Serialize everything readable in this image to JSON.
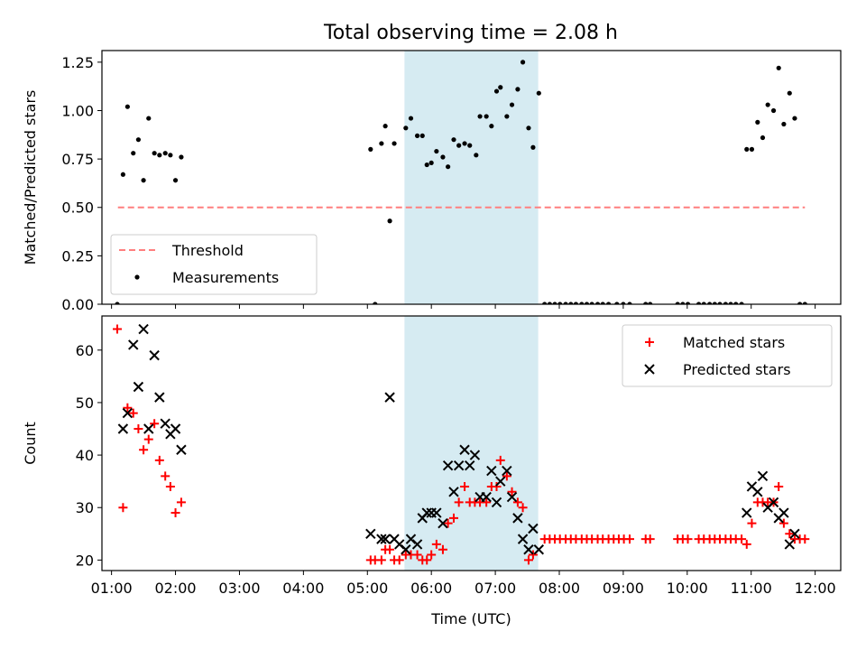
{
  "figure": {
    "title": "Total observing time = 2.08 h"
  },
  "colors": {
    "measurements": "#000000",
    "threshold": "#ff7f7f",
    "span": "#add8e6",
    "matched": "#ff0000",
    "predicted": "#000000"
  },
  "chart_data": [
    {
      "type": "scatter",
      "ylabel": "Matched/Predicted stars",
      "xlim": [
        0.85,
        12.4
      ],
      "ylim": [
        0.0,
        1.31
      ],
      "yticks": [
        0.0,
        0.25,
        0.5,
        0.75,
        1.0,
        1.25
      ],
      "ytick_labels": [
        "0.00",
        "0.25",
        "0.50",
        "0.75",
        "1.00",
        "1.25"
      ],
      "highlight_span": [
        5.58,
        7.67
      ],
      "threshold": {
        "name": "Threshold",
        "value": 0.5,
        "x_range": [
          1.1,
          11.84
        ],
        "style": "dashed"
      },
      "legend": {
        "position": "lower-left",
        "entries": [
          "Threshold",
          "Measurements"
        ]
      },
      "series": [
        {
          "name": "Measurements",
          "marker": "dot",
          "points": [
            [
              1.09,
              0.0
            ],
            [
              1.18,
              0.67
            ],
            [
              1.25,
              1.02
            ],
            [
              1.34,
              0.78
            ],
            [
              1.42,
              0.85
            ],
            [
              1.5,
              0.64
            ],
            [
              1.58,
              0.96
            ],
            [
              1.67,
              0.78
            ],
            [
              1.75,
              0.77
            ],
            [
              1.84,
              0.78
            ],
            [
              1.92,
              0.77
            ],
            [
              2.0,
              0.64
            ],
            [
              2.09,
              0.76
            ],
            [
              5.05,
              0.8
            ],
            [
              5.12,
              0.0
            ],
            [
              5.22,
              0.83
            ],
            [
              5.28,
              0.92
            ],
            [
              5.35,
              0.43
            ],
            [
              5.42,
              0.83
            ],
            [
              5.6,
              0.91
            ],
            [
              5.68,
              0.96
            ],
            [
              5.78,
              0.87
            ],
            [
              5.86,
              0.87
            ],
            [
              5.93,
              0.72
            ],
            [
              6.0,
              0.73
            ],
            [
              6.08,
              0.79
            ],
            [
              6.18,
              0.76
            ],
            [
              6.26,
              0.71
            ],
            [
              6.35,
              0.85
            ],
            [
              6.43,
              0.82
            ],
            [
              6.52,
              0.83
            ],
            [
              6.6,
              0.82
            ],
            [
              6.7,
              0.77
            ],
            [
              6.76,
              0.97
            ],
            [
              6.86,
              0.97
            ],
            [
              6.94,
              0.92
            ],
            [
              7.02,
              1.1
            ],
            [
              7.08,
              1.12
            ],
            [
              7.18,
              0.97
            ],
            [
              7.26,
              1.03
            ],
            [
              7.35,
              1.11
            ],
            [
              7.43,
              1.25
            ],
            [
              7.52,
              0.91
            ],
            [
              7.59,
              0.81
            ],
            [
              7.68,
              1.09
            ],
            [
              7.77,
              0.0
            ],
            [
              7.85,
              0.0
            ],
            [
              7.93,
              0.0
            ],
            [
              8.01,
              0.0
            ],
            [
              8.1,
              0.0
            ],
            [
              8.18,
              0.0
            ],
            [
              8.26,
              0.0
            ],
            [
              8.35,
              0.0
            ],
            [
              8.43,
              0.0
            ],
            [
              8.51,
              0.0
            ],
            [
              8.6,
              0.0
            ],
            [
              8.68,
              0.0
            ],
            [
              8.77,
              0.0
            ],
            [
              8.9,
              0.0
            ],
            [
              9.0,
              0.0
            ],
            [
              9.1,
              0.0
            ],
            [
              9.35,
              0.0
            ],
            [
              9.42,
              0.0
            ],
            [
              9.85,
              0.0
            ],
            [
              9.93,
              0.0
            ],
            [
              10.01,
              0.0
            ],
            [
              10.18,
              0.0
            ],
            [
              10.26,
              0.0
            ],
            [
              10.35,
              0.0
            ],
            [
              10.43,
              0.0
            ],
            [
              10.51,
              0.0
            ],
            [
              10.6,
              0.0
            ],
            [
              10.68,
              0.0
            ],
            [
              10.76,
              0.0
            ],
            [
              10.85,
              0.0
            ],
            [
              10.93,
              0.8
            ],
            [
              11.01,
              0.8
            ],
            [
              11.1,
              0.94
            ],
            [
              11.18,
              0.86
            ],
            [
              11.26,
              1.03
            ],
            [
              11.35,
              1.0
            ],
            [
              11.43,
              1.22
            ],
            [
              11.51,
              0.93
            ],
            [
              11.6,
              1.09
            ],
            [
              11.68,
              0.96
            ],
            [
              11.76,
              0.0
            ],
            [
              11.84,
              0.0
            ]
          ]
        }
      ]
    },
    {
      "type": "scatter",
      "xlabel": "Time (UTC)",
      "ylabel": "Count",
      "xlim": [
        0.85,
        12.4
      ],
      "ylim": [
        18,
        66.5
      ],
      "yticks": [
        20,
        30,
        40,
        50,
        60
      ],
      "ytick_labels": [
        "20",
        "30",
        "40",
        "50",
        "60"
      ],
      "xticks": [
        1,
        2,
        3,
        4,
        5,
        6,
        7,
        8,
        9,
        10,
        11,
        12
      ],
      "xtick_labels": [
        "01:00",
        "02:00",
        "03:00",
        "04:00",
        "05:00",
        "06:00",
        "07:00",
        "08:00",
        "09:00",
        "10:00",
        "11:00",
        "12:00"
      ],
      "highlight_span": [
        5.58,
        7.67
      ],
      "legend": {
        "position": "upper-right",
        "entries": [
          "Matched stars",
          "Predicted stars"
        ]
      },
      "series": [
        {
          "name": "Matched stars",
          "marker": "plus",
          "points": [
            [
              1.09,
              64
            ],
            [
              1.18,
              30
            ],
            [
              1.25,
              49
            ],
            [
              1.34,
              48
            ],
            [
              1.42,
              45
            ],
            [
              1.5,
              41
            ],
            [
              1.58,
              43
            ],
            [
              1.67,
              46
            ],
            [
              1.75,
              39
            ],
            [
              1.84,
              36
            ],
            [
              1.92,
              34
            ],
            [
              2.0,
              29
            ],
            [
              2.09,
              31
            ],
            [
              5.05,
              20
            ],
            [
              5.12,
              20
            ],
            [
              5.22,
              20
            ],
            [
              5.28,
              22
            ],
            [
              5.35,
              22
            ],
            [
              5.42,
              20
            ],
            [
              5.5,
              20
            ],
            [
              5.6,
              21
            ],
            [
              5.68,
              21
            ],
            [
              5.78,
              21
            ],
            [
              5.86,
              20
            ],
            [
              5.93,
              20
            ],
            [
              6.0,
              21
            ],
            [
              6.08,
              23
            ],
            [
              6.18,
              22
            ],
            [
              6.26,
              27
            ],
            [
              6.35,
              28
            ],
            [
              6.43,
              31
            ],
            [
              6.52,
              34
            ],
            [
              6.6,
              31
            ],
            [
              6.68,
              31
            ],
            [
              6.76,
              31
            ],
            [
              6.86,
              31
            ],
            [
              6.94,
              34
            ],
            [
              7.02,
              34
            ],
            [
              7.08,
              39
            ],
            [
              7.18,
              36
            ],
            [
              7.26,
              33
            ],
            [
              7.35,
              31
            ],
            [
              7.43,
              30
            ],
            [
              7.52,
              20
            ],
            [
              7.59,
              21
            ],
            [
              7.77,
              24
            ],
            [
              7.85,
              24
            ],
            [
              7.93,
              24
            ],
            [
              8.01,
              24
            ],
            [
              8.1,
              24
            ],
            [
              8.18,
              24
            ],
            [
              8.26,
              24
            ],
            [
              8.35,
              24
            ],
            [
              8.43,
              24
            ],
            [
              8.51,
              24
            ],
            [
              8.6,
              24
            ],
            [
              8.68,
              24
            ],
            [
              8.77,
              24
            ],
            [
              8.85,
              24
            ],
            [
              8.93,
              24
            ],
            [
              9.01,
              24
            ],
            [
              9.1,
              24
            ],
            [
              9.35,
              24
            ],
            [
              9.42,
              24
            ],
            [
              9.85,
              24
            ],
            [
              9.93,
              24
            ],
            [
              10.01,
              24
            ],
            [
              10.18,
              24
            ],
            [
              10.26,
              24
            ],
            [
              10.35,
              24
            ],
            [
              10.43,
              24
            ],
            [
              10.51,
              24
            ],
            [
              10.6,
              24
            ],
            [
              10.68,
              24
            ],
            [
              10.76,
              24
            ],
            [
              10.85,
              24
            ],
            [
              10.93,
              23
            ],
            [
              11.01,
              27
            ],
            [
              11.1,
              31
            ],
            [
              11.18,
              31
            ],
            [
              11.26,
              31
            ],
            [
              11.35,
              31
            ],
            [
              11.43,
              34
            ],
            [
              11.51,
              27
            ],
            [
              11.6,
              25
            ],
            [
              11.68,
              24
            ],
            [
              11.76,
              24
            ],
            [
              11.84,
              24
            ]
          ]
        },
        {
          "name": "Predicted stars",
          "marker": "x",
          "points": [
            [
              1.18,
              45
            ],
            [
              1.25,
              48
            ],
            [
              1.34,
              61
            ],
            [
              1.42,
              53
            ],
            [
              1.5,
              64
            ],
            [
              1.58,
              45
            ],
            [
              1.67,
              59
            ],
            [
              1.75,
              51
            ],
            [
              1.84,
              46
            ],
            [
              1.92,
              44
            ],
            [
              2.0,
              45
            ],
            [
              2.09,
              41
            ],
            [
              5.05,
              25
            ],
            [
              5.22,
              24
            ],
            [
              5.28,
              24
            ],
            [
              5.35,
              51
            ],
            [
              5.42,
              24
            ],
            [
              5.5,
              23
            ],
            [
              5.6,
              22
            ],
            [
              5.68,
              24
            ],
            [
              5.78,
              23
            ],
            [
              5.86,
              28
            ],
            [
              5.93,
              29
            ],
            [
              6.0,
              29
            ],
            [
              6.08,
              29
            ],
            [
              6.18,
              27
            ],
            [
              6.26,
              38
            ],
            [
              6.35,
              33
            ],
            [
              6.43,
              38
            ],
            [
              6.52,
              41
            ],
            [
              6.6,
              38
            ],
            [
              6.68,
              40
            ],
            [
              6.76,
              32
            ],
            [
              6.86,
              32
            ],
            [
              6.94,
              37
            ],
            [
              7.02,
              31
            ],
            [
              7.08,
              35
            ],
            [
              7.18,
              37
            ],
            [
              7.26,
              32
            ],
            [
              7.35,
              28
            ],
            [
              7.43,
              24
            ],
            [
              7.52,
              22
            ],
            [
              7.59,
              26
            ],
            [
              7.68,
              22
            ],
            [
              10.93,
              29
            ],
            [
              11.01,
              34
            ],
            [
              11.1,
              33
            ],
            [
              11.18,
              36
            ],
            [
              11.26,
              30
            ],
            [
              11.35,
              31
            ],
            [
              11.43,
              28
            ],
            [
              11.51,
              29
            ],
            [
              11.6,
              23
            ],
            [
              11.68,
              25
            ]
          ]
        }
      ]
    }
  ]
}
